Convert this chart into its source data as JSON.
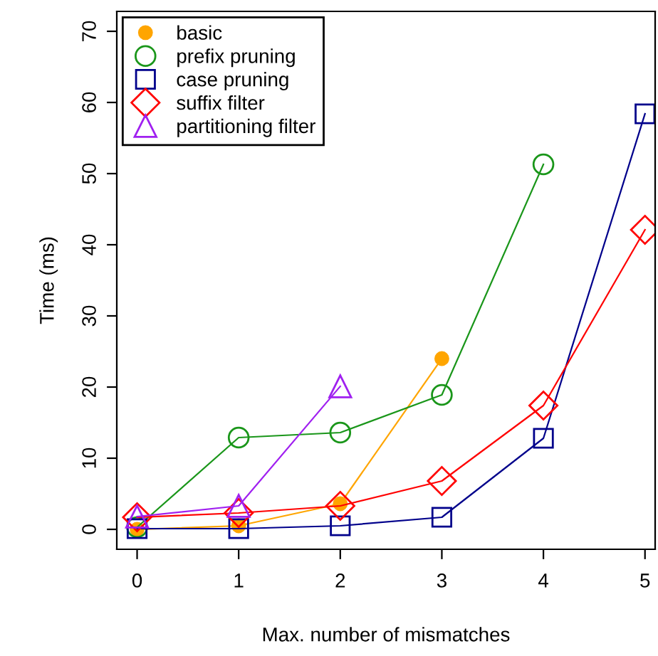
{
  "chart_data": {
    "type": "line",
    "xlabel": "Max. number of mismatches",
    "ylabel": "Time (ms)",
    "x": [
      0,
      1,
      2,
      3,
      4,
      5
    ],
    "xlim": [
      -0.2,
      5.1
    ],
    "xticks": [
      0,
      1,
      2,
      3,
      4,
      5
    ],
    "ylim": [
      -2.8,
      72.8
    ],
    "yticks": [
      0,
      10,
      20,
      30,
      40,
      50,
      60,
      70
    ],
    "grid": false,
    "legend": "top left",
    "series": [
      {
        "name": "basic",
        "color": "#ffa500",
        "marker": "filled circle",
        "values": [
          0.0,
          0.5,
          3.6,
          24.0,
          null,
          null
        ]
      },
      {
        "name": "prefix pruning",
        "color": "#1a961a",
        "marker": "circle",
        "values": [
          0.3,
          12.9,
          13.6,
          18.9,
          51.3,
          null
        ]
      },
      {
        "name": "case pruning",
        "color": "#00008b",
        "marker": "square",
        "values": [
          0.1,
          0.1,
          0.5,
          1.7,
          12.8,
          58.4
        ]
      },
      {
        "name": "suffix filter",
        "color": "#ff0000",
        "marker": "diamond",
        "values": [
          1.7,
          2.3,
          3.3,
          6.8,
          17.4,
          42.1
        ]
      },
      {
        "name": "partitioning filter",
        "color": "#a020f0",
        "marker": "triangle",
        "values": [
          1.8,
          3.3,
          20.1,
          null,
          null,
          null
        ]
      }
    ]
  }
}
